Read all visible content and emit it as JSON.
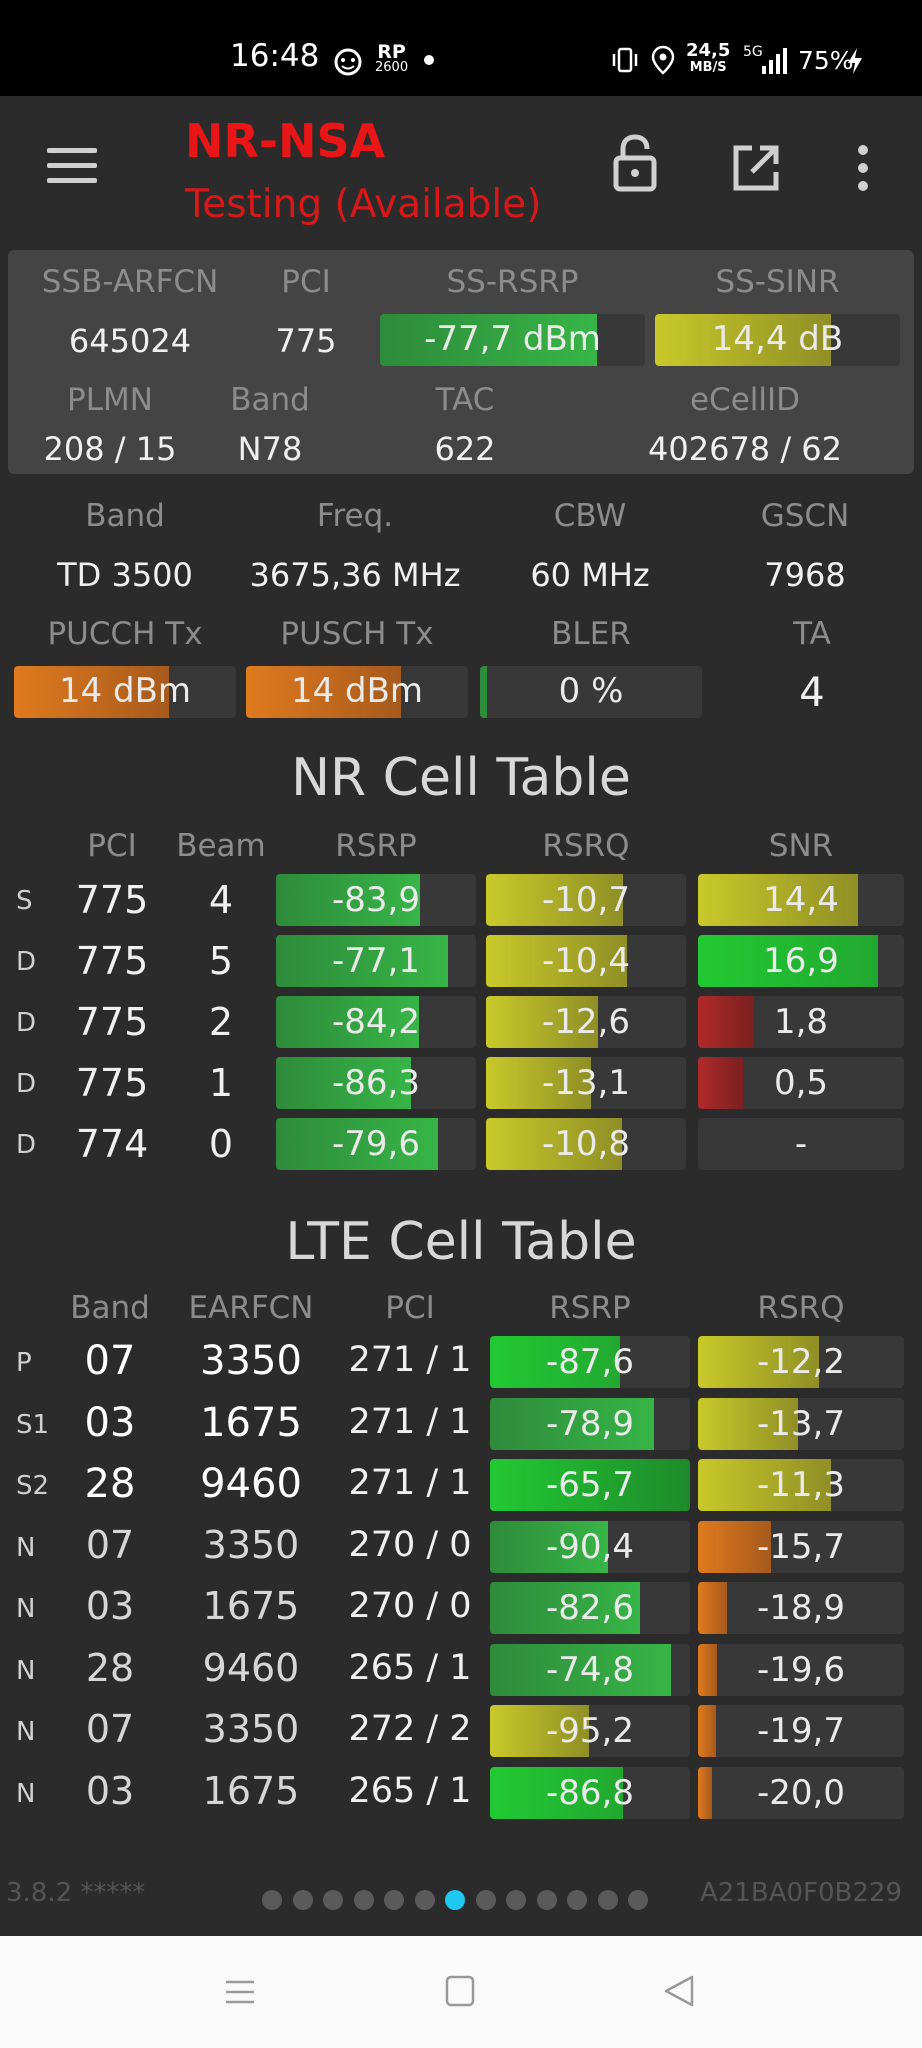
{
  "status_bar": {
    "time": "16:48",
    "rp_top": "RP",
    "rp_bottom": "2600",
    "speed_value": "24,5",
    "speed_unit": "MB/S",
    "network": "5G",
    "battery": "75%"
  },
  "app_bar": {
    "title": "NR-NSA",
    "subtitle": "Testing (Available)"
  },
  "summary": {
    "headers": [
      "SSB-ARFCN",
      "PCI",
      "SS-RSRP",
      "SS-SINR"
    ],
    "ssb_arfcn": "645024",
    "pci": "775",
    "ss_rsrp": "-77,7 dBm",
    "ss_sinr": "14,4 dB",
    "headers2": [
      "PLMN",
      "Band",
      "TAC",
      "eCellID"
    ],
    "plmn": "208 / 15",
    "band": "N78",
    "tac": "622",
    "ecellid": "402678 / 62"
  },
  "details": {
    "headers": [
      "Band",
      "Freq.",
      "CBW",
      "GSCN"
    ],
    "band": "TD 3500",
    "freq": "3675,36 MHz",
    "cbw": "60 MHz",
    "gscn": "7968",
    "headers2": [
      "PUCCH Tx",
      "PUSCH Tx",
      "BLER",
      "TA"
    ],
    "pucch_tx": "14 dBm",
    "pusch_tx": "14 dBm",
    "bler": "0 %",
    "ta": "4"
  },
  "nr_table": {
    "title": "NR Cell Table",
    "headers": [
      "PCI",
      "Beam",
      "RSRP",
      "RSRQ",
      "SNR"
    ],
    "rows": [
      {
        "type": "S",
        "pci": "775",
        "beam": "4",
        "rsrp": "-83,9",
        "rsrq": "-10,7",
        "snr": "14,4"
      },
      {
        "type": "D",
        "pci": "775",
        "beam": "5",
        "rsrp": "-77,1",
        "rsrq": "-10,4",
        "snr": "16,9"
      },
      {
        "type": "D",
        "pci": "775",
        "beam": "2",
        "rsrp": "-84,2",
        "rsrq": "-12,6",
        "snr": "1,8"
      },
      {
        "type": "D",
        "pci": "775",
        "beam": "1",
        "rsrp": "-86,3",
        "rsrq": "-13,1",
        "snr": "0,5"
      },
      {
        "type": "D",
        "pci": "774",
        "beam": "0",
        "rsrp": "-79,6",
        "rsrq": "-10,8",
        "snr": "-"
      }
    ]
  },
  "lte_table": {
    "title": "LTE Cell Table",
    "headers": [
      "Band",
      "EARFCN",
      "PCI",
      "RSRP",
      "RSRQ"
    ],
    "rows": [
      {
        "type": "P",
        "band": "07",
        "earfcn": "3350",
        "pci": "271 / 1",
        "rsrp": "-87,6",
        "rsrq": "-12,2"
      },
      {
        "type": "S1",
        "band": "03",
        "earfcn": "1675",
        "pci": "271 / 1",
        "rsrp": "-78,9",
        "rsrq": "-13,7"
      },
      {
        "type": "S2",
        "band": "28",
        "earfcn": "9460",
        "pci": "271 / 1",
        "rsrp": "-65,7",
        "rsrq": "-11,3"
      },
      {
        "type": "N",
        "band": "07",
        "earfcn": "3350",
        "pci": "270 / 0",
        "rsrp": "-90,4",
        "rsrq": "-15,7"
      },
      {
        "type": "N",
        "band": "03",
        "earfcn": "1675",
        "pci": "270 / 0",
        "rsrp": "-82,6",
        "rsrq": "-18,9"
      },
      {
        "type": "N",
        "band": "28",
        "earfcn": "9460",
        "pci": "265 / 1",
        "rsrp": "-74,8",
        "rsrq": "-19,6"
      },
      {
        "type": "N",
        "band": "07",
        "earfcn": "3350",
        "pci": "272 / 2",
        "rsrp": "-95,2",
        "rsrq": "-19,7"
      },
      {
        "type": "N",
        "band": "03",
        "earfcn": "1675",
        "pci": "265 / 1",
        "rsrp": "-86,8",
        "rsrq": "-20,0"
      }
    ]
  },
  "footer": {
    "version": "3.8.2 *****",
    "device_id": "A21BA0F0B229",
    "page_count": 13,
    "active_page": 7
  },
  "colors": {
    "green": "#2e8b3a",
    "bright_green": "#22c933",
    "yellow": "#c9c92a",
    "orange": "#e07a1f",
    "red": "#b02a2a",
    "title_red": "#e81616",
    "dot_active": "#1ec8f0"
  }
}
